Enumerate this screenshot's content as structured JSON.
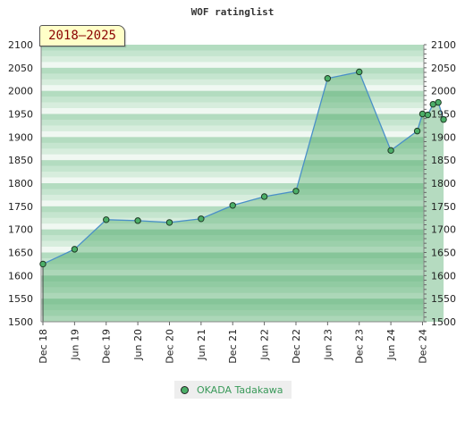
{
  "chart_data": {
    "type": "area",
    "title": "WOF ratinglist",
    "period_label": "2018–2025",
    "ylim": [
      1500,
      2100
    ],
    "y_ticks": [
      1500,
      1550,
      1600,
      1650,
      1700,
      1750,
      1800,
      1850,
      1900,
      1950,
      2000,
      2050,
      2100
    ],
    "x_tick_labels": [
      "Dec 18",
      "Jun 19",
      "Dec 19",
      "Jun 20",
      "Dec 20",
      "Jun 21",
      "Dec 21",
      "Jun 22",
      "Dec 22",
      "Jun 23",
      "Dec 23",
      "Jun 24",
      "Dec 24"
    ],
    "legend_position": "bottom",
    "series": [
      {
        "name": "OKADA Tadakawa",
        "color": "#4caf68",
        "points": [
          {
            "x": "Dec 18",
            "y": 1625
          },
          {
            "x": "Jun 19",
            "y": 1657
          },
          {
            "x": "Dec 19",
            "y": 1721
          },
          {
            "x": "Jun 20",
            "y": 1719
          },
          {
            "x": "Dec 20",
            "y": 1715
          },
          {
            "x": "Jun 21",
            "y": 1723
          },
          {
            "x": "Dec 21",
            "y": 1752
          },
          {
            "x": "Jun 22",
            "y": 1771
          },
          {
            "x": "Dec 22",
            "y": 1783
          },
          {
            "x": "Jun 23",
            "y": 2027
          },
          {
            "x": "Dec 23",
            "y": 2041
          },
          {
            "x": "Jun 24",
            "y": 1871
          },
          {
            "x": "Nov 24",
            "y": 1913
          },
          {
            "x": "Dec 24",
            "y": 1950
          },
          {
            "x": "Jan 25",
            "y": 1948
          },
          {
            "x": "Feb 25",
            "y": 1971
          },
          {
            "x": "Mar 25",
            "y": 1975
          },
          {
            "x": "Apr 25",
            "y": 1938
          }
        ]
      }
    ]
  }
}
